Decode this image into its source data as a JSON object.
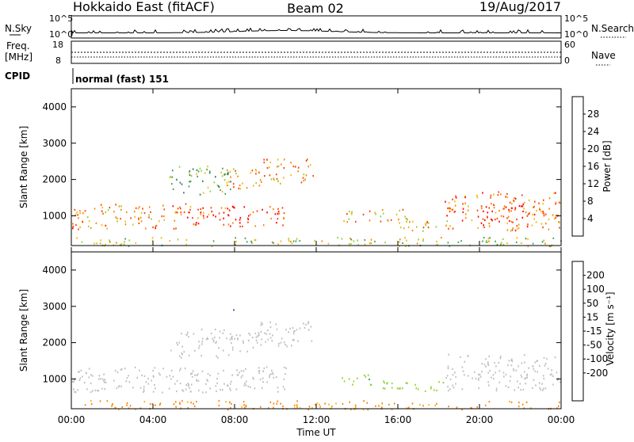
{
  "header": {
    "station": "Hokkaido East (fitACF)",
    "beam": "Beam 02",
    "date": "19/Aug/2017"
  },
  "noise_panel": {
    "left_label": "N.Sky",
    "right_label": "N.Search",
    "left_ticks": [
      "10^5",
      "10^0"
    ],
    "right_ticks": [
      "10^5",
      "10^0"
    ]
  },
  "freq_panel": {
    "left_label_1": "Freq.",
    "left_label_2": "[MHz]",
    "left_ticks": [
      "18",
      "8"
    ],
    "right_label": "Nave",
    "right_ticks": [
      "60",
      "0"
    ]
  },
  "cpid_panel": {
    "label": "CPID",
    "value": "normal (fast) 151"
  },
  "colors": {
    "power": [
      "#0000ff",
      "#1f4fbf",
      "#2e7b5a",
      "#3f9e55",
      "#8fd12f",
      "#f2b800",
      "#ff8000",
      "#ff4000",
      "#ff0000"
    ],
    "velocity": [
      "#ff0000",
      "#ff3a00",
      "#ff8000",
      "#ffb300",
      "#f3d27a",
      "#bebebe",
      "#8fd12f",
      "#2e8b57",
      "#1f4fbf",
      "#0000ff"
    ],
    "ground_scatter": "#bebebe"
  },
  "chart_data": [
    {
      "type": "heatmap",
      "panel": "power",
      "ylabel": "Slant Range [km]",
      "yticks": [
        1000,
        2000,
        3000,
        4000
      ],
      "ylim": [
        180,
        4500
      ],
      "xlim": [
        0,
        24
      ],
      "colorbar": {
        "label": "Power [dB]",
        "ticks": [
          4,
          8,
          12,
          16,
          20,
          24,
          28
        ],
        "range": [
          0,
          32
        ]
      },
      "regions": [
        {
          "t": [
            0.0,
            6.0
          ],
          "r": [
            650,
            1350
          ],
          "v": 23
        },
        {
          "t": [
            6.0,
            10.5
          ],
          "r": [
            700,
            1300
          ],
          "v": 27
        },
        {
          "t": [
            7.6,
            9.2
          ],
          "r": [
            1750,
            2300
          ],
          "v": 21
        },
        {
          "t": [
            8.9,
            11.9
          ],
          "r": [
            1900,
            2600
          ],
          "v": 22
        },
        {
          "t": [
            4.8,
            8.0
          ],
          "r": [
            1600,
            2400
          ],
          "v": 14
        },
        {
          "t": [
            13.2,
            16.5
          ],
          "r": [
            850,
            1200
          ],
          "v": 20
        },
        {
          "t": [
            16.0,
            18.4
          ],
          "r": [
            600,
            1000
          ],
          "v": 21
        },
        {
          "t": [
            18.3,
            24.0
          ],
          "r": [
            600,
            1700
          ],
          "v": 24
        },
        {
          "t": [
            20.0,
            22.5
          ],
          "r": [
            700,
            1300
          ],
          "v": 29
        },
        {
          "t": [
            0.0,
            24.0
          ],
          "r": [
            180,
            420
          ],
          "v": 17
        }
      ]
    },
    {
      "type": "heatmap",
      "panel": "velocity",
      "ylabel": "Slant Range [km]",
      "yticks": [
        1000,
        2000,
        3000,
        4000
      ],
      "ylim": [
        180,
        4500
      ],
      "xlim": [
        0,
        24
      ],
      "xticks": [
        "00:00",
        "04:00",
        "08:00",
        "12:00",
        "16:00",
        "20:00",
        "00:00"
      ],
      "xlabel": "Time UT",
      "colorbar": {
        "label": "Velocity [m s⁻¹]",
        "ticks": [
          "200",
          "100",
          "50",
          "15",
          "-15",
          "-50",
          "-100",
          "-200"
        ]
      },
      "regions": [
        {
          "t": [
            0.0,
            10.5
          ],
          "r": [
            650,
            1350
          ],
          "v": 0
        },
        {
          "t": [
            8.9,
            11.9
          ],
          "r": [
            1900,
            2600
          ],
          "v": 0
        },
        {
          "t": [
            7.6,
            9.2
          ],
          "r": [
            1750,
            2300
          ],
          "v": 0
        },
        {
          "t": [
            4.8,
            8.0
          ],
          "r": [
            1600,
            2400
          ],
          "v": 0
        },
        {
          "t": [
            13.2,
            15.0
          ],
          "r": [
            850,
            1150
          ],
          "v": 40
        },
        {
          "t": [
            15.0,
            18.2
          ],
          "r": [
            650,
            1000
          ],
          "v": 30
        },
        {
          "t": [
            18.3,
            24.0
          ],
          "r": [
            700,
            1700
          ],
          "v": 0
        },
        {
          "t": [
            7.9,
            8.2
          ],
          "r": [
            2900,
            3100
          ],
          "v": 200
        },
        {
          "t": [
            0.0,
            24.0
          ],
          "r": [
            180,
            420
          ],
          "v": -60
        }
      ]
    }
  ]
}
